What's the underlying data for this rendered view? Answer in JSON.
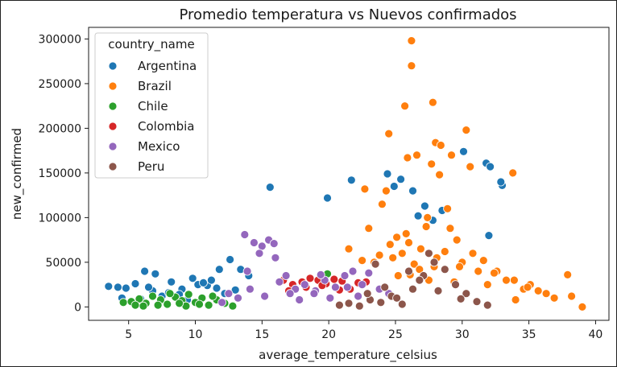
{
  "chart_data": {
    "type": "scatter",
    "title": "Promedio temperatura vs Nuevos confirmados",
    "xlabel": "average_temperature_celsius",
    "ylabel": "new_confirmed",
    "xlim": [
      2,
      41
    ],
    "ylim": [
      -15000,
      313000
    ],
    "xticks": [
      5,
      10,
      15,
      20,
      25,
      30,
      35,
      40
    ],
    "xtick_labels": [
      "5",
      "10",
      "15",
      "20",
      "25",
      "30",
      "35",
      "40"
    ],
    "yticks": [
      0,
      50000,
      100000,
      150000,
      200000,
      250000,
      300000
    ],
    "ytick_labels": [
      "0",
      "50000",
      "100000",
      "150000",
      "200000",
      "250000",
      "300000"
    ],
    "grid": false,
    "legend": {
      "title": "country_name",
      "position": "top-left"
    },
    "series": [
      {
        "name": "Argentina",
        "color": "#1f77b4",
        "x": [
          3.5,
          4.2,
          4.8,
          5.5,
          6.2,
          7.0,
          8.2,
          9.0,
          9.8,
          10.9,
          11.8,
          12.6,
          13.4,
          15.6,
          19.9,
          21.7,
          24.4,
          25.4,
          26.3,
          27.2,
          28.5,
          30.1,
          31.8,
          32.1,
          33.0,
          32.0,
          6.8,
          11.2,
          14.0,
          7.5,
          10.2,
          12.2,
          5.9,
          8.8,
          4.5,
          6.5,
          13.0,
          9.4,
          11.6,
          26.7,
          27.8,
          32.9,
          24.9,
          8.0,
          10.6
        ],
        "y": [
          23000,
          22000,
          21000,
          26000,
          40000,
          37000,
          28000,
          20000,
          32000,
          24000,
          42000,
          53000,
          42000,
          134000,
          122000,
          142000,
          149000,
          143000,
          130000,
          113000,
          108000,
          174000,
          161000,
          157000,
          136000,
          80000,
          18000,
          30000,
          35000,
          12000,
          25000,
          15000,
          9000,
          14000,
          10000,
          22000,
          19000,
          8000,
          21000,
          102000,
          97000,
          140000,
          135000,
          16000,
          27000
        ]
      },
      {
        "name": "Brazil",
        "color": "#ff7f0e",
        "x": [
          26.2,
          26.2,
          27.8,
          25.7,
          24.5,
          30.3,
          28.0,
          28.4,
          26.6,
          25.9,
          29.2,
          30.6,
          33.8,
          24.3,
          28.3,
          27.7,
          22.7,
          21.5,
          23.4,
          25.1,
          26.0,
          27.4,
          29.1,
          30.8,
          31.6,
          32.6,
          33.9,
          35.1,
          36.3,
          37.9,
          39.0,
          34.6,
          35.7,
          28.9,
          24.0,
          23.0,
          21.8,
          25.5,
          26.9,
          27.3,
          29.6,
          31.2,
          32.4,
          33.3,
          36.9,
          38.2,
          34.0,
          24.8,
          26.4,
          27.9,
          28.7,
          30.0,
          25.2,
          26.8,
          27.5,
          29.4,
          24.6,
          25.8,
          23.8,
          22.5,
          31.9,
          34.9,
          29.8,
          28.1,
          26.1
        ],
        "y": [
          298000,
          270000,
          229000,
          225000,
          194000,
          198000,
          184000,
          181000,
          170000,
          167000,
          170000,
          157000,
          150000,
          130000,
          148000,
          160000,
          132000,
          65000,
          50000,
          78000,
          72000,
          100000,
          88000,
          60000,
          52000,
          40000,
          30000,
          25000,
          15000,
          36000,
          0,
          20000,
          18000,
          110000,
          115000,
          88000,
          40000,
          60000,
          65000,
          90000,
          75000,
          40000,
          38000,
          30000,
          10000,
          12000,
          8000,
          55000,
          48000,
          45000,
          62000,
          50000,
          35000,
          42000,
          30000,
          28000,
          70000,
          82000,
          58000,
          52000,
          25000,
          22000,
          45000,
          55000,
          36000
        ]
      },
      {
        "name": "Chile",
        "color": "#2ca02c",
        "x": [
          4.6,
          5.2,
          5.8,
          6.3,
          6.8,
          7.4,
          7.9,
          8.5,
          9.0,
          9.5,
          10.0,
          10.5,
          11.0,
          11.6,
          12.2,
          12.8,
          6.1,
          7.2,
          8.1,
          9.3,
          10.3,
          11.3,
          5.5,
          8.8,
          19.9
        ],
        "y": [
          5000,
          6000,
          9000,
          4000,
          12000,
          8000,
          3000,
          11000,
          7000,
          14000,
          5000,
          10000,
          2000,
          8000,
          4000,
          1000,
          1000,
          2000,
          15000,
          1000,
          3000,
          12000,
          2000,
          4000,
          37000
        ]
      },
      {
        "name": "Colombia",
        "color": "#d62728",
        "x": [
          16.6,
          17.3,
          18.0,
          18.6,
          19.2,
          19.8,
          20.4,
          21.0,
          21.6,
          22.2,
          17.0,
          18.3,
          19.5,
          20.8,
          22.8
        ],
        "y": [
          30000,
          25000,
          28000,
          32000,
          30000,
          26000,
          31000,
          29000,
          20000,
          27000,
          18000,
          22000,
          24000,
          19000,
          28000
        ]
      },
      {
        "name": "Mexico",
        "color": "#9467bd",
        "x": [
          13.7,
          14.4,
          15.0,
          15.5,
          15.9,
          16.8,
          17.5,
          18.2,
          19.0,
          19.7,
          20.5,
          21.2,
          21.8,
          22.5,
          23.0,
          12.5,
          13.2,
          14.1,
          15.2,
          16.3,
          17.8,
          18.9,
          20.1,
          21.4,
          22.2,
          14.8,
          16.0,
          19.4,
          23.8,
          24.5,
          12.0,
          13.9,
          17.1
        ],
        "y": [
          81000,
          72000,
          68000,
          75000,
          71000,
          35000,
          20000,
          25000,
          18000,
          30000,
          22000,
          35000,
          40000,
          25000,
          38000,
          15000,
          10000,
          20000,
          12000,
          28000,
          8000,
          15000,
          10000,
          22000,
          12000,
          60000,
          55000,
          36000,
          20000,
          15000,
          5000,
          40000,
          15000
        ]
      },
      {
        "name": "Peru",
        "color": "#8c564b",
        "x": [
          20.8,
          21.5,
          22.3,
          23.1,
          23.9,
          24.7,
          25.5,
          26.3,
          27.1,
          27.9,
          28.7,
          29.5,
          30.3,
          31.1,
          31.9,
          23.5,
          25.1,
          26.8,
          28.2,
          29.9,
          24.2,
          27.5,
          22.9,
          26.0
        ],
        "y": [
          2000,
          4000,
          1000,
          8000,
          5000,
          12000,
          3000,
          20000,
          35000,
          50000,
          42000,
          25000,
          15000,
          6000,
          2000,
          48000,
          10000,
          30000,
          18000,
          9000,
          22000,
          60000,
          15000,
          40000
        ]
      }
    ]
  }
}
